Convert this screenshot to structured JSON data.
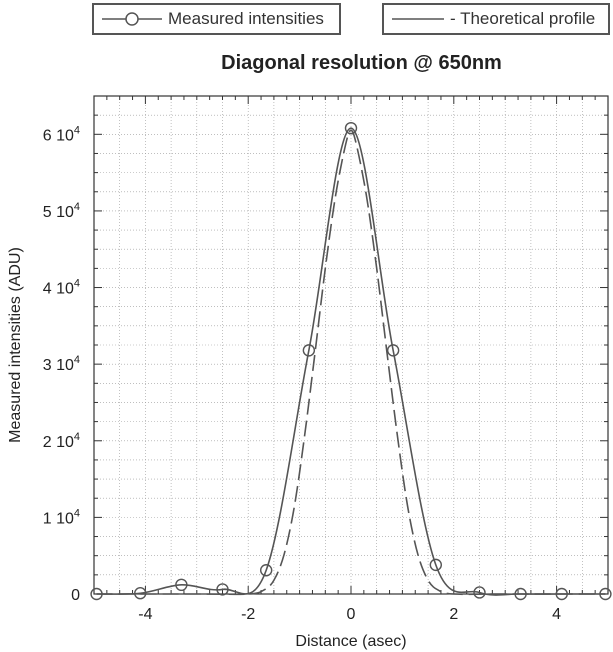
{
  "chart_data": {
    "type": "line",
    "title": "Diagonal resolution @ 650nm",
    "xlabel": "Distance (asec)",
    "ylabel": "Measured intensities (ADU)",
    "xlim": [
      -5,
      5
    ],
    "ylim": [
      0,
      65000
    ],
    "x_ticks": [
      -4,
      -2,
      0,
      2,
      4
    ],
    "x_tick_labels": [
      "-4",
      "-2",
      "0",
      "2",
      "4"
    ],
    "y_ticks": [
      0,
      10000,
      20000,
      30000,
      40000,
      50000,
      60000
    ],
    "y_tick_labels": [
      {
        "mantissa": "0",
        "exp": ""
      },
      {
        "mantissa": "1 10",
        "exp": "4"
      },
      {
        "mantissa": "2 10",
        "exp": "4"
      },
      {
        "mantissa": "3 10",
        "exp": "4"
      },
      {
        "mantissa": "4 10",
        "exp": "4"
      },
      {
        "mantissa": "5 10",
        "exp": "4"
      },
      {
        "mantissa": "6 10",
        "exp": "4"
      }
    ],
    "grid": true,
    "legend_placement": "top",
    "series": [
      {
        "name": "Measured intensities",
        "style": "solid-with-circle-markers",
        "color": "#555555",
        "x": [
          -4.95,
          -4.1,
          -3.3,
          -2.5,
          -1.65,
          -0.82,
          0,
          0.82,
          1.65,
          2.5,
          3.3,
          4.1,
          4.95
        ],
        "y": [
          0,
          100,
          1200,
          600,
          3100,
          31800,
          60800,
          31800,
          3800,
          200,
          0,
          0,
          0
        ]
      },
      {
        "name": "- Theoretical profile",
        "style": "dashed",
        "color": "#555555",
        "x": [
          -4.95,
          -3.0,
          -2.0,
          -1.7,
          -1.5,
          -1.3,
          -1.1,
          -0.9,
          -0.7,
          -0.5,
          -0.3,
          -0.1,
          0,
          0.1,
          0.3,
          0.5,
          0.7,
          0.9,
          1.1,
          1.3,
          1.5,
          1.7,
          2.0,
          3.0,
          4.95
        ],
        "y": [
          0,
          0,
          0,
          500,
          1800,
          5200,
          11500,
          20800,
          31500,
          42500,
          52000,
          58800,
          60500,
          58800,
          52000,
          42500,
          31500,
          20800,
          11500,
          5200,
          1800,
          500,
          0,
          0,
          0
        ]
      }
    ]
  },
  "legend": {
    "measured_label": "Measured intensities",
    "theoretical_label": "- Theoretical profile"
  },
  "colors": {
    "line": "#555555",
    "grid": "#999999",
    "frame": "#333333"
  }
}
